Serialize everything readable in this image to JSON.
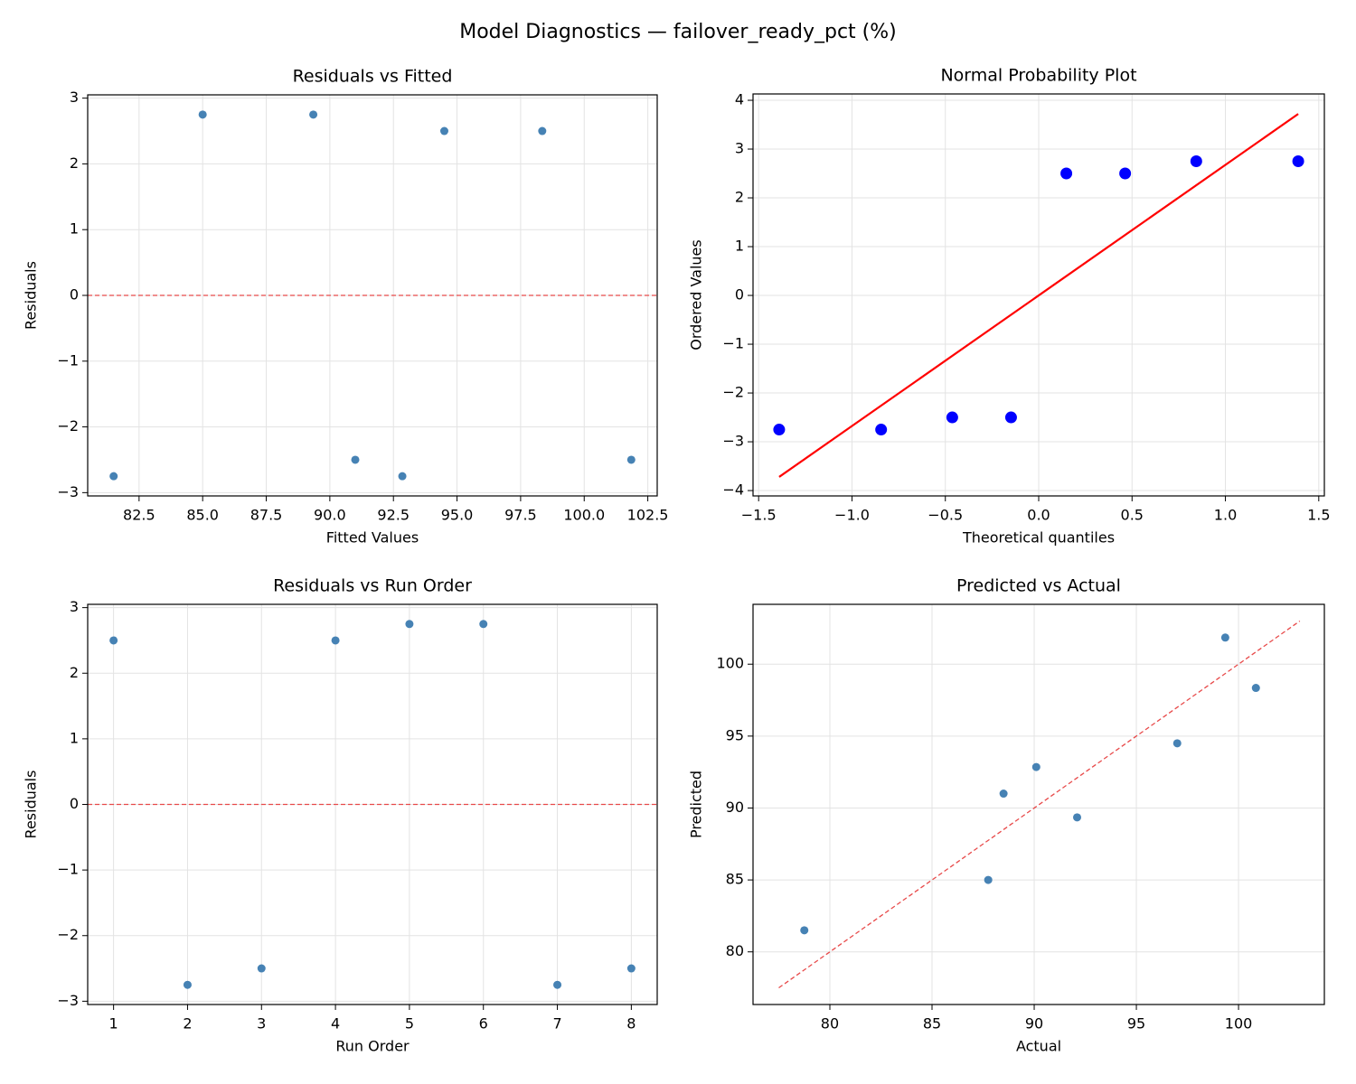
{
  "title": "Model Diagnostics — failover_ready_pct (%)",
  "chart_data": [
    {
      "type": "scatter",
      "title": "Residuals vs Fitted",
      "xlabel": "Fitted Values",
      "ylabel": "Residuals",
      "x": [
        81.5,
        85.0,
        89.35,
        91.0,
        92.85,
        94.5,
        98.35,
        101.85
      ],
      "values": [
        -2.75,
        2.75,
        2.75,
        -2.5,
        -2.75,
        2.5,
        2.5,
        -2.5
      ],
      "color": "#4682b4",
      "hline": {
        "value": 0,
        "color": "#e84a4a",
        "style": "dashed"
      },
      "xlim": [
        80.48,
        102.87
      ],
      "ylim": [
        -3.05,
        3.05
      ],
      "xticks": [
        82.5,
        {
          "value": 85,
          "label": "85.0"
        },
        87.5,
        {
          "value": 90,
          "label": "90.0"
        },
        92.5,
        {
          "value": 95,
          "label": "95.0"
        },
        97.5,
        {
          "value": 100,
          "label": "100.0"
        },
        102.5
      ],
      "yticks": [
        {
          "value": -3,
          "label": "−3"
        },
        {
          "value": -2,
          "label": "−2"
        },
        {
          "value": -1,
          "label": "−1"
        },
        0,
        1,
        2,
        3
      ],
      "grid": true
    },
    {
      "type": "scatter",
      "title": "Normal Probability Plot",
      "xlabel": "Theoretical quantiles",
      "ylabel": "Ordered Values",
      "x": [
        -1.39,
        -0.844,
        -0.463,
        -0.148,
        0.148,
        0.463,
        0.844,
        1.39
      ],
      "values": [
        -2.75,
        -2.75,
        -2.5,
        -2.5,
        2.5,
        2.5,
        2.75,
        2.75
      ],
      "color": "#0000ff",
      "fit_line": {
        "x": [
          -1.39,
          1.39
        ],
        "values": [
          -3.72,
          3.72
        ],
        "color": "#ff0000",
        "style": "solid"
      },
      "xlim": [
        -1.53,
        1.53
      ],
      "ylim": [
        -4.11,
        4.13
      ],
      "xticks": [
        {
          "value": -1.5,
          "label": "−1.5"
        },
        {
          "value": -1,
          "label": "−1.0"
        },
        {
          "value": -0.5,
          "label": "−0.5"
        },
        {
          "value": 0,
          "label": "0.0"
        },
        0.5,
        {
          "value": 1,
          "label": "1.0"
        },
        1.5
      ],
      "yticks": [
        {
          "value": -4,
          "label": "−4"
        },
        {
          "value": -3,
          "label": "−3"
        },
        {
          "value": -2,
          "label": "−2"
        },
        {
          "value": -1,
          "label": "−1"
        },
        0,
        1,
        2,
        3,
        4
      ],
      "grid": true
    },
    {
      "type": "scatter",
      "title": "Residuals vs Run Order",
      "xlabel": "Run Order",
      "ylabel": "Residuals",
      "x": [
        1,
        2,
        3,
        4,
        5,
        6,
        7,
        8
      ],
      "values": [
        2.5,
        -2.75,
        -2.5,
        2.5,
        2.75,
        2.75,
        -2.75,
        -2.5
      ],
      "color": "#4682b4",
      "hline": {
        "value": 0,
        "color": "#e84a4a",
        "style": "dashed"
      },
      "xlim": [
        0.65,
        8.35
      ],
      "ylim": [
        -3.05,
        3.05
      ],
      "xticks": [
        1,
        2,
        3,
        4,
        5,
        6,
        7,
        8
      ],
      "yticks": [
        {
          "value": -3,
          "label": "−3"
        },
        {
          "value": -2,
          "label": "−2"
        },
        {
          "value": -1,
          "label": "−1"
        },
        0,
        1,
        2,
        3
      ],
      "grid": true
    },
    {
      "type": "scatter",
      "title": "Predicted vs Actual",
      "xlabel": "Actual",
      "ylabel": "Predicted",
      "x": [
        78.75,
        87.75,
        92.1,
        88.5,
        90.1,
        97.0,
        100.85,
        99.35
      ],
      "values": [
        81.5,
        85.0,
        89.35,
        91.0,
        92.85,
        94.5,
        98.35,
        101.85
      ],
      "color": "#4682b4",
      "fit_line": {
        "x": [
          77.5,
          103
        ],
        "values": [
          77.5,
          103
        ],
        "color": "#e84a4a",
        "style": "dashed"
      },
      "xlim": [
        76.24,
        104.2
      ],
      "ylim": [
        76.34,
        104.16
      ],
      "xticks": [
        80,
        85,
        90,
        95,
        100
      ],
      "yticks": [
        80,
        85,
        90,
        95,
        100
      ],
      "grid": true
    }
  ]
}
